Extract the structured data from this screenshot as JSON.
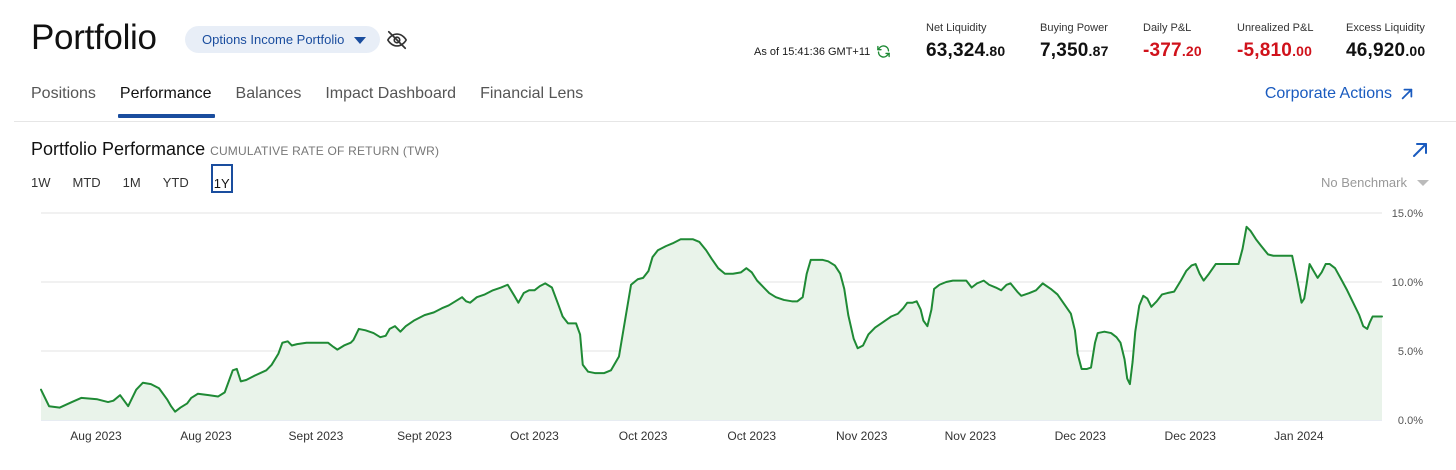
{
  "header": {
    "title": "Portfolio",
    "account": "Options Income Portfolio",
    "as_of": "As of 15:41:36 GMT+11"
  },
  "metrics": [
    {
      "label": "Net Liquidity",
      "int": "63,324",
      "dec": ".80",
      "negative": false
    },
    {
      "label": "Buying Power",
      "int": "7,350",
      "dec": ".87",
      "negative": false
    },
    {
      "label": "Daily P&L",
      "int": "-377",
      "dec": ".20",
      "negative": true
    },
    {
      "label": "Unrealized P&L",
      "int": "-5,810",
      "dec": ".00",
      "negative": true
    },
    {
      "label": "Excess Liquidity",
      "int": "46,920",
      "dec": ".00",
      "negative": false
    }
  ],
  "tabs": [
    "Positions",
    "Performance",
    "Balances",
    "Impact Dashboard",
    "Financial Lens"
  ],
  "active_tab": "Performance",
  "corporate_actions": "Corporate Actions",
  "performance": {
    "title": "Portfolio Performance",
    "subtitle": "CUMULATIVE RATE OF RETURN (TWR)",
    "ranges": [
      "1W",
      "MTD",
      "1M",
      "YTD",
      "1Y"
    ],
    "selected_range": "1Y",
    "benchmark": "No Benchmark"
  },
  "colors": {
    "accent": "#1a4d9e",
    "link": "#1a5bbf",
    "negative": "#d0121b",
    "line": "#1f8a35",
    "fill": "#e9f3ea"
  },
  "chart_data": {
    "type": "area",
    "ylim": [
      0,
      15
    ],
    "yticks": [
      "15.0%",
      "10.0%",
      "5.0%",
      "0.0%"
    ],
    "ytick_values": [
      15,
      10,
      5,
      0
    ],
    "xtick_labels": [
      "Aug 2023",
      "Aug 2023",
      "Sept 2023",
      "Sept 2023",
      "Oct 2023",
      "Oct 2023",
      "Oct 2023",
      "Nov 2023",
      "Nov 2023",
      "Dec 2023",
      "Dec 2023",
      "Jan 2024"
    ],
    "x_range": [
      0,
      100
    ],
    "xtick_positions": [
      4.1,
      12.3,
      20.5,
      28.6,
      36.8,
      44.9,
      53.0,
      61.2,
      69.3,
      77.5,
      85.7,
      93.8
    ],
    "series": [
      {
        "values": [
          [
            0.0,
            2.2
          ],
          [
            0.6,
            1.0
          ],
          [
            1.4,
            0.9
          ],
          [
            2.3,
            1.3
          ],
          [
            3.0,
            1.6
          ],
          [
            4.2,
            1.5
          ],
          [
            5.0,
            1.3
          ],
          [
            5.4,
            1.4
          ],
          [
            5.9,
            1.8
          ],
          [
            6.5,
            1.0
          ],
          [
            7.1,
            2.2
          ],
          [
            7.6,
            2.7
          ],
          [
            8.2,
            2.6
          ],
          [
            8.8,
            2.3
          ],
          [
            9.4,
            1.5
          ],
          [
            9.7,
            1.0
          ],
          [
            10.0,
            0.6
          ],
          [
            10.4,
            0.9
          ],
          [
            10.9,
            1.2
          ],
          [
            11.2,
            1.6
          ],
          [
            11.7,
            1.9
          ],
          [
            12.5,
            1.8
          ],
          [
            13.2,
            1.7
          ],
          [
            13.7,
            2.0
          ],
          [
            14.3,
            3.6
          ],
          [
            14.6,
            3.7
          ],
          [
            14.9,
            2.8
          ],
          [
            15.3,
            2.9
          ],
          [
            15.9,
            3.2
          ],
          [
            16.8,
            3.6
          ],
          [
            17.2,
            4.0
          ],
          [
            17.7,
            4.8
          ],
          [
            18.0,
            5.6
          ],
          [
            18.4,
            5.7
          ],
          [
            18.7,
            5.4
          ],
          [
            19.1,
            5.5
          ],
          [
            19.8,
            5.6
          ],
          [
            20.5,
            5.6
          ],
          [
            21.0,
            5.6
          ],
          [
            21.4,
            5.6
          ],
          [
            21.8,
            5.3
          ],
          [
            22.1,
            5.1
          ],
          [
            22.6,
            5.4
          ],
          [
            23.1,
            5.6
          ],
          [
            23.3,
            5.8
          ],
          [
            23.7,
            6.6
          ],
          [
            24.2,
            6.5
          ],
          [
            24.8,
            6.3
          ],
          [
            25.3,
            6.0
          ],
          [
            25.7,
            6.1
          ],
          [
            26.0,
            6.6
          ],
          [
            26.4,
            6.8
          ],
          [
            26.8,
            6.4
          ],
          [
            27.2,
            6.8
          ],
          [
            27.8,
            7.2
          ],
          [
            28.6,
            7.6
          ],
          [
            29.3,
            7.8
          ],
          [
            29.9,
            8.1
          ],
          [
            30.4,
            8.3
          ],
          [
            30.9,
            8.6
          ],
          [
            31.4,
            8.9
          ],
          [
            31.7,
            8.6
          ],
          [
            32.0,
            8.5
          ],
          [
            32.5,
            8.9
          ],
          [
            33.1,
            9.1
          ],
          [
            33.7,
            9.4
          ],
          [
            34.3,
            9.6
          ],
          [
            34.8,
            9.8
          ],
          [
            35.3,
            9.0
          ],
          [
            35.6,
            8.5
          ],
          [
            36.0,
            9.2
          ],
          [
            36.4,
            9.4
          ],
          [
            36.8,
            9.4
          ],
          [
            37.2,
            9.7
          ],
          [
            37.6,
            9.9
          ],
          [
            38.1,
            9.6
          ],
          [
            38.6,
            8.3
          ],
          [
            38.9,
            7.5
          ],
          [
            39.3,
            7.0
          ],
          [
            39.9,
            7.0
          ],
          [
            40.2,
            6.2
          ],
          [
            40.4,
            4.0
          ],
          [
            40.8,
            3.5
          ],
          [
            41.3,
            3.4
          ],
          [
            42.0,
            3.4
          ],
          [
            42.5,
            3.6
          ],
          [
            43.1,
            4.6
          ],
          [
            43.6,
            7.5
          ],
          [
            44.0,
            9.8
          ],
          [
            44.5,
            10.2
          ],
          [
            44.9,
            10.3
          ],
          [
            45.3,
            10.8
          ],
          [
            45.6,
            11.8
          ],
          [
            46.0,
            12.3
          ],
          [
            46.6,
            12.6
          ],
          [
            47.1,
            12.8
          ],
          [
            47.7,
            13.1
          ],
          [
            48.6,
            13.1
          ],
          [
            49.1,
            12.9
          ],
          [
            49.6,
            12.3
          ],
          [
            50.0,
            11.7
          ],
          [
            50.5,
            11.0
          ],
          [
            51.0,
            10.6
          ],
          [
            51.6,
            10.6
          ],
          [
            52.2,
            10.7
          ],
          [
            52.6,
            11.0
          ],
          [
            53.0,
            10.7
          ],
          [
            53.4,
            10.1
          ],
          [
            53.9,
            9.6
          ],
          [
            54.3,
            9.2
          ],
          [
            54.8,
            8.9
          ],
          [
            55.4,
            8.7
          ],
          [
            56.0,
            8.6
          ],
          [
            56.4,
            8.6
          ],
          [
            56.8,
            8.9
          ],
          [
            57.1,
            10.6
          ],
          [
            57.4,
            11.6
          ],
          [
            57.8,
            11.6
          ],
          [
            58.3,
            11.6
          ],
          [
            58.7,
            11.5
          ],
          [
            59.2,
            11.2
          ],
          [
            59.6,
            10.6
          ],
          [
            59.9,
            9.5
          ],
          [
            60.2,
            7.6
          ],
          [
            60.6,
            5.9
          ],
          [
            60.9,
            5.2
          ],
          [
            61.3,
            5.4
          ],
          [
            61.7,
            6.2
          ],
          [
            62.2,
            6.7
          ],
          [
            62.8,
            7.1
          ],
          [
            63.4,
            7.5
          ],
          [
            63.9,
            7.7
          ],
          [
            64.3,
            8.1
          ],
          [
            64.6,
            8.5
          ],
          [
            65.0,
            8.5
          ],
          [
            65.3,
            8.6
          ],
          [
            65.6,
            8.0
          ],
          [
            65.8,
            7.2
          ],
          [
            66.1,
            6.8
          ],
          [
            66.4,
            8.0
          ],
          [
            66.6,
            9.5
          ],
          [
            67.0,
            9.8
          ],
          [
            67.5,
            10.0
          ],
          [
            68.0,
            10.1
          ],
          [
            68.6,
            10.1
          ],
          [
            69.0,
            10.1
          ],
          [
            69.4,
            9.6
          ],
          [
            69.8,
            9.9
          ],
          [
            70.3,
            10.1
          ],
          [
            70.7,
            9.8
          ],
          [
            71.2,
            9.6
          ],
          [
            71.6,
            9.4
          ],
          [
            72.0,
            9.8
          ],
          [
            72.3,
            9.9
          ],
          [
            72.8,
            9.3
          ],
          [
            73.1,
            9.0
          ],
          [
            73.7,
            9.2
          ],
          [
            74.2,
            9.4
          ],
          [
            74.7,
            9.9
          ],
          [
            75.3,
            9.5
          ],
          [
            75.8,
            9.1
          ],
          [
            76.3,
            8.4
          ],
          [
            76.8,
            7.7
          ],
          [
            77.1,
            6.5
          ],
          [
            77.3,
            4.8
          ],
          [
            77.6,
            3.7
          ],
          [
            78.0,
            3.7
          ],
          [
            78.3,
            3.8
          ],
          [
            78.6,
            5.6
          ],
          [
            78.8,
            6.3
          ],
          [
            79.3,
            6.4
          ],
          [
            79.8,
            6.3
          ],
          [
            80.2,
            6.0
          ],
          [
            80.5,
            5.6
          ],
          [
            80.8,
            4.4
          ],
          [
            81.0,
            3.0
          ],
          [
            81.2,
            2.6
          ],
          [
            81.4,
            4.2
          ],
          [
            81.6,
            6.4
          ],
          [
            81.9,
            8.3
          ],
          [
            82.2,
            9.0
          ],
          [
            82.5,
            8.8
          ],
          [
            82.8,
            8.2
          ],
          [
            83.2,
            8.6
          ],
          [
            83.6,
            9.1
          ],
          [
            84.0,
            9.2
          ],
          [
            84.5,
            9.3
          ],
          [
            85.0,
            10.1
          ],
          [
            85.4,
            10.8
          ],
          [
            85.8,
            11.2
          ],
          [
            86.1,
            11.3
          ],
          [
            86.4,
            10.6
          ],
          [
            86.7,
            10.1
          ],
          [
            87.1,
            10.6
          ],
          [
            87.6,
            11.3
          ],
          [
            88.0,
            11.3
          ],
          [
            88.5,
            11.3
          ],
          [
            89.0,
            11.3
          ],
          [
            89.3,
            11.3
          ],
          [
            89.6,
            12.4
          ],
          [
            89.9,
            14.0
          ],
          [
            90.2,
            13.7
          ],
          [
            90.6,
            13.1
          ],
          [
            91.0,
            12.6
          ],
          [
            91.5,
            12.0
          ],
          [
            91.9,
            11.9
          ],
          [
            92.3,
            11.9
          ],
          [
            92.7,
            11.9
          ],
          [
            93.1,
            11.9
          ],
          [
            93.3,
            11.9
          ],
          [
            93.6,
            10.5
          ],
          [
            93.8,
            9.5
          ],
          [
            94.0,
            8.5
          ],
          [
            94.2,
            8.8
          ],
          [
            94.4,
            10.0
          ],
          [
            94.6,
            11.3
          ],
          [
            94.9,
            10.8
          ],
          [
            95.2,
            10.3
          ],
          [
            95.5,
            10.7
          ],
          [
            95.8,
            11.3
          ],
          [
            96.1,
            11.3
          ],
          [
            96.5,
            11.0
          ],
          [
            96.9,
            10.3
          ],
          [
            97.4,
            9.4
          ],
          [
            97.9,
            8.4
          ],
          [
            98.3,
            7.6
          ],
          [
            98.6,
            6.8
          ],
          [
            98.9,
            6.6
          ],
          [
            99.1,
            7.1
          ],
          [
            99.3,
            7.5
          ],
          [
            99.6,
            7.5
          ],
          [
            100.0,
            7.5
          ]
        ]
      }
    ]
  }
}
